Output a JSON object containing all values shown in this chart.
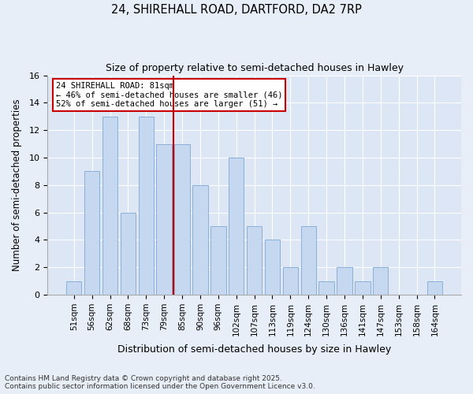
{
  "title1": "24, SHIREHALL ROAD, DARTFORD, DA2 7RP",
  "title2": "Size of property relative to semi-detached houses in Hawley",
  "xlabel": "Distribution of semi-detached houses by size in Hawley",
  "ylabel": "Number of semi-detached properties",
  "categories": [
    "51sqm",
    "56sqm",
    "62sqm",
    "68sqm",
    "73sqm",
    "79sqm",
    "85sqm",
    "90sqm",
    "96sqm",
    "102sqm",
    "107sqm",
    "113sqm",
    "119sqm",
    "124sqm",
    "130sqm",
    "136sqm",
    "141sqm",
    "147sqm",
    "153sqm",
    "158sqm",
    "164sqm"
  ],
  "values": [
    1,
    9,
    13,
    6,
    13,
    11,
    11,
    8,
    5,
    10,
    5,
    4,
    2,
    5,
    1,
    2,
    1,
    2,
    0,
    0,
    1
  ],
  "bar_color": "#c5d8f0",
  "bar_edge_color": "#8ab0d8",
  "vline_x": 6,
  "vline_color": "#cc0000",
  "annotation_title": "24 SHIREHALL ROAD: 81sqm",
  "annotation_line1": "← 46% of semi-detached houses are smaller (46)",
  "annotation_line2": "52% of semi-detached houses are larger (51) →",
  "annotation_box_color": "#cc0000",
  "ylim": [
    0,
    16
  ],
  "yticks": [
    0,
    2,
    4,
    6,
    8,
    10,
    12,
    14,
    16
  ],
  "footnote1": "Contains HM Land Registry data © Crown copyright and database right 2025.",
  "footnote2": "Contains public sector information licensed under the Open Government Licence v3.0.",
  "bg_color": "#e8eef7",
  "plot_bg_color": "#dce6f5"
}
